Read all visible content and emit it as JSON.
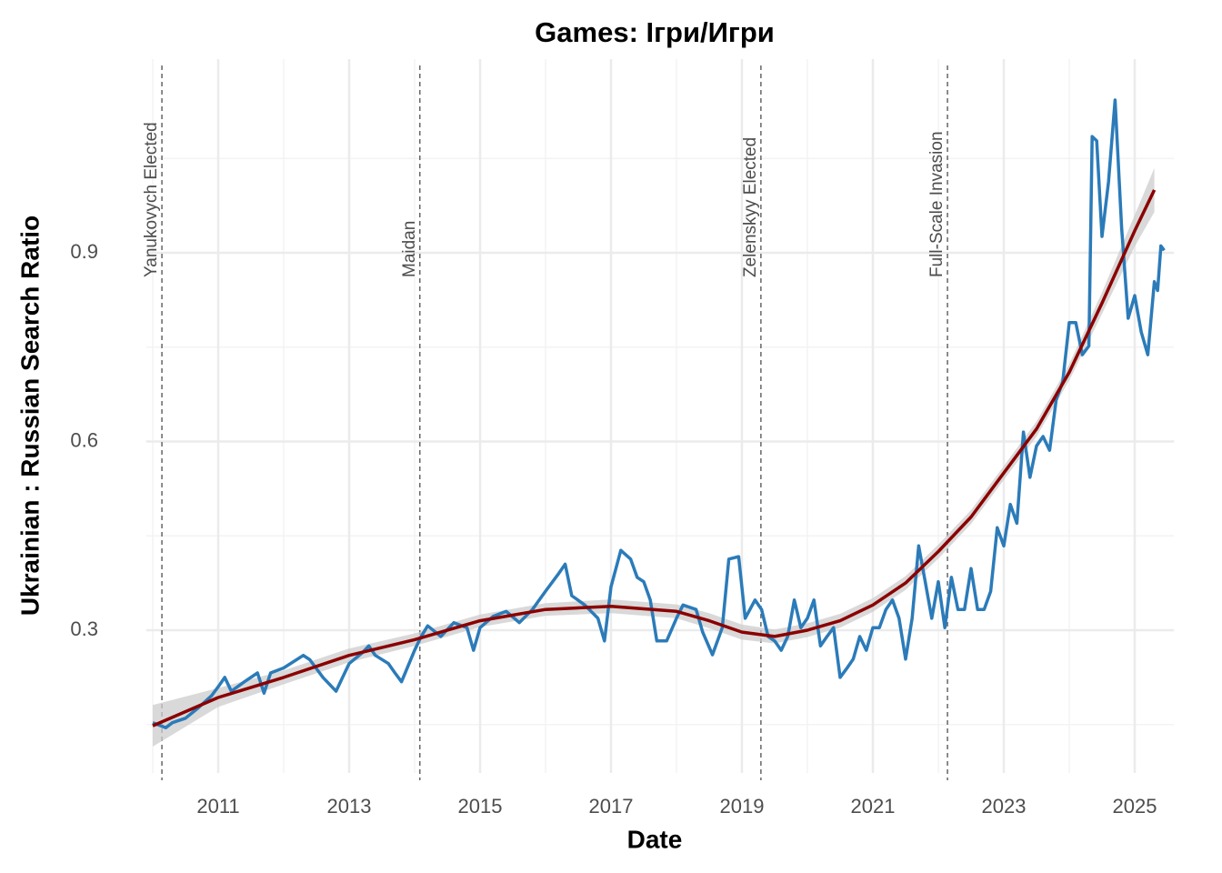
{
  "chart_data": {
    "type": "line",
    "title": "Games: Ігри/Игри",
    "x_label": "Date",
    "y_label": "Ukrainian : Russian Search Ratio",
    "xlim": [
      2009.9,
      2025.6
    ],
    "xticks": [
      2011,
      2013,
      2015,
      2017,
      2019,
      2021,
      2023,
      2025
    ],
    "xticks_minor": [
      2010,
      2012,
      2014,
      2016,
      2018,
      2020,
      2022,
      2024
    ],
    "ylim": [
      0.073,
      1.208
    ],
    "yticks": [
      0.3,
      0.6,
      0.9
    ],
    "yticks_minor": [
      0.15,
      0.45,
      0.75,
      1.05
    ],
    "grid": true,
    "series": [
      {
        "color": "#2b7bb9",
        "x": [
          2010.0,
          2010.2,
          2010.3,
          2010.5,
          2010.7,
          2010.9,
          2011.0,
          2011.1,
          2011.2,
          2011.4,
          2011.6,
          2011.7,
          2011.8,
          2012.0,
          2012.3,
          2012.4,
          2012.6,
          2012.8,
          2012.9,
          2013.0,
          2013.2,
          2013.3,
          2013.4,
          2013.6,
          2013.7,
          2013.8,
          2014.0,
          2014.1,
          2014.2,
          2014.4,
          2014.6,
          2014.8,
          2014.9,
          2015.0,
          2015.2,
          2015.4,
          2015.6,
          2015.8,
          2016.0,
          2016.2,
          2016.3,
          2016.4,
          2016.6,
          2016.8,
          2016.9,
          2017.0,
          2017.15,
          2017.3,
          2017.4,
          2017.5,
          2017.6,
          2017.7,
          2017.85,
          2018.0,
          2018.1,
          2018.3,
          2018.4,
          2018.55,
          2018.7,
          2018.8,
          2018.95,
          2019.05,
          2019.2,
          2019.3,
          2019.4,
          2019.5,
          2019.6,
          2019.7,
          2019.8,
          2019.9,
          2020.0,
          2020.1,
          2020.2,
          2020.3,
          2020.4,
          2020.5,
          2020.6,
          2020.7,
          2020.8,
          2020.9,
          2021.0,
          2021.1,
          2021.2,
          2021.3,
          2021.4,
          2021.5,
          2021.6,
          2021.7,
          2021.8,
          2021.9,
          2022.0,
          2022.1,
          2022.2,
          2022.3,
          2022.4,
          2022.5,
          2022.6,
          2022.7,
          2022.8,
          2022.9,
          2023.0,
          2023.1,
          2023.2,
          2023.3,
          2023.4,
          2023.5,
          2023.6,
          2023.7,
          2023.8,
          2023.9,
          2024.0,
          2024.1,
          2024.2,
          2024.3,
          2024.35,
          2024.42,
          2024.5,
          2024.6,
          2024.7,
          2024.8,
          2024.9,
          2025.0,
          2025.1,
          2025.2,
          2025.3,
          2025.35,
          2025.4,
          2025.45
        ],
        "values": [
          0.153,
          0.145,
          0.153,
          0.16,
          0.177,
          0.196,
          0.21,
          0.225,
          0.203,
          0.218,
          0.232,
          0.2,
          0.232,
          0.24,
          0.26,
          0.253,
          0.225,
          0.203,
          0.225,
          0.247,
          0.264,
          0.275,
          0.26,
          0.247,
          0.232,
          0.218,
          0.268,
          0.29,
          0.307,
          0.29,
          0.312,
          0.304,
          0.268,
          0.304,
          0.322,
          0.33,
          0.312,
          0.333,
          0.362,
          0.39,
          0.405,
          0.355,
          0.34,
          0.319,
          0.283,
          0.369,
          0.427,
          0.413,
          0.384,
          0.377,
          0.348,
          0.283,
          0.283,
          0.319,
          0.34,
          0.333,
          0.297,
          0.261,
          0.304,
          0.413,
          0.417,
          0.319,
          0.348,
          0.333,
          0.29,
          0.283,
          0.268,
          0.29,
          0.348,
          0.304,
          0.319,
          0.348,
          0.275,
          0.29,
          0.304,
          0.225,
          0.239,
          0.254,
          0.29,
          0.268,
          0.304,
          0.304,
          0.333,
          0.348,
          0.319,
          0.254,
          0.319,
          0.434,
          0.377,
          0.319,
          0.377,
          0.304,
          0.384,
          0.333,
          0.333,
          0.398,
          0.333,
          0.333,
          0.362,
          0.463,
          0.434,
          0.5,
          0.47,
          0.615,
          0.543,
          0.593,
          0.608,
          0.586,
          0.666,
          0.695,
          0.789,
          0.789,
          0.738,
          0.752,
          1.085,
          1.078,
          0.926,
          1.013,
          1.143,
          0.94,
          0.796,
          0.832,
          0.774,
          0.738,
          0.854,
          0.84,
          0.911,
          0.904
        ]
      }
    ],
    "trend": {
      "color": "#8b0000",
      "fill": "#cccccc",
      "x": [
        2010.0,
        2011.0,
        2012.0,
        2013.0,
        2014.0,
        2015.0,
        2016.0,
        2017.0,
        2018.0,
        2018.5,
        2019.0,
        2019.5,
        2020.0,
        2020.5,
        2021.0,
        2021.5,
        2022.0,
        2022.5,
        2023.0,
        2023.5,
        2024.0,
        2024.5,
        2025.0,
        2025.3
      ],
      "values": [
        0.148,
        0.193,
        0.225,
        0.26,
        0.285,
        0.315,
        0.333,
        0.338,
        0.33,
        0.315,
        0.297,
        0.29,
        0.3,
        0.315,
        0.34,
        0.375,
        0.425,
        0.48,
        0.55,
        0.62,
        0.71,
        0.82,
        0.935,
        1.0
      ],
      "lower": [
        0.115,
        0.178,
        0.214,
        0.249,
        0.275,
        0.305,
        0.323,
        0.327,
        0.319,
        0.303,
        0.285,
        0.279,
        0.289,
        0.304,
        0.329,
        0.364,
        0.414,
        0.469,
        0.539,
        0.608,
        0.697,
        0.803,
        0.91,
        0.965
      ],
      "upper": [
        0.181,
        0.208,
        0.236,
        0.271,
        0.295,
        0.325,
        0.343,
        0.349,
        0.341,
        0.327,
        0.309,
        0.301,
        0.311,
        0.326,
        0.351,
        0.386,
        0.436,
        0.491,
        0.561,
        0.632,
        0.723,
        0.837,
        0.96,
        1.035
      ]
    },
    "events": [
      {
        "x": 2010.14,
        "label": "Yanukovych Elected"
      },
      {
        "x": 2014.08,
        "label": "Maidan"
      },
      {
        "x": 2019.29,
        "label": "Zelenskyy Elected"
      },
      {
        "x": 2022.14,
        "label": "Full-Scale Invasion"
      }
    ]
  }
}
